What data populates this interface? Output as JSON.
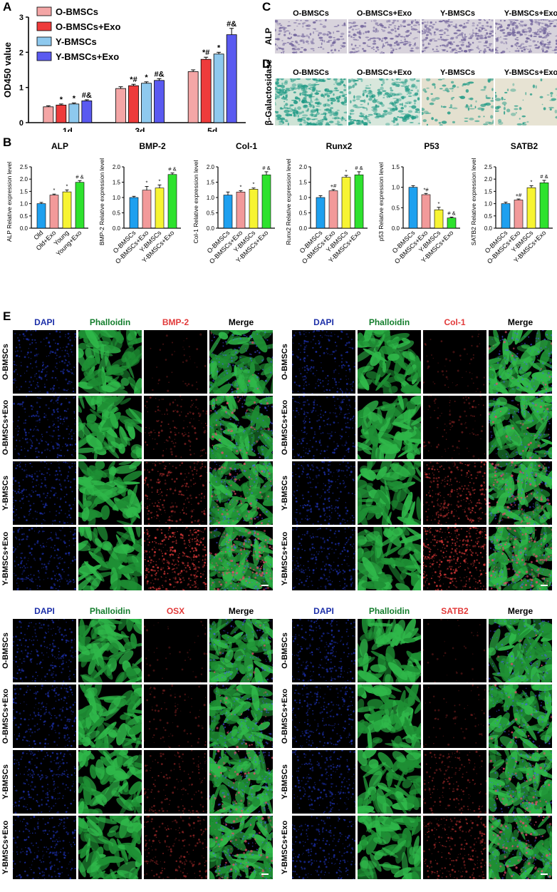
{
  "panels": {
    "A": "A",
    "B": "B",
    "C": "C",
    "D": "D",
    "E": "E"
  },
  "colors": {
    "o": "#f4a6a6",
    "oexo": "#ee3b3b",
    "y": "#8ec9ee",
    "yexo": "#5a5af0",
    "b_old": "#1ea0ef",
    "b_oldexo": "#f29a9a",
    "b_young": "#f7f432",
    "b_youngexo": "#2ee22e",
    "dapi": "#1c2fa8",
    "phal": "#137d2c",
    "red": "#e23a3a"
  },
  "panel_a": {
    "ylabel": "OD450 value",
    "legend": [
      "O-BMSCs",
      "O-BMSCs+Exo",
      "Y-BMSCs",
      "Y-BMSCs+Exo"
    ],
    "chart_data": {
      "type": "bar",
      "categories": [
        "1d",
        "3d",
        "5d"
      ],
      "ylim": [
        0,
        3
      ],
      "yticks": [
        "0",
        "1",
        "2",
        "3"
      ],
      "series": [
        {
          "name": "O-BMSCs",
          "values": [
            0.45,
            0.97,
            1.45
          ],
          "err": [
            0.03,
            0.05,
            0.05
          ]
        },
        {
          "name": "O-BMSCs+Exo",
          "values": [
            0.5,
            1.05,
            1.8
          ],
          "err": [
            0.03,
            0.04,
            0.06
          ]
        },
        {
          "name": "Y-BMSCs",
          "values": [
            0.53,
            1.12,
            1.95
          ],
          "err": [
            0.03,
            0.04,
            0.05
          ]
        },
        {
          "name": "Y-BMSCs+Exo",
          "values": [
            0.62,
            1.2,
            2.5
          ],
          "err": [
            0.03,
            0.05,
            0.18
          ]
        }
      ],
      "annotations": [
        [
          "",
          "*",
          "*",
          "#&"
        ],
        [
          "",
          "*#",
          "*",
          "#&"
        ],
        [
          "",
          "*#",
          "*",
          "#&"
        ]
      ]
    }
  },
  "panel_c": {
    "row_label": "ALP",
    "cols": [
      "O-BMSCs",
      "O-BMSCs+Exo",
      "Y-BMSCs",
      "Y-BMSCs+Exo"
    ]
  },
  "panel_d": {
    "row_label": "β-Galactosidase",
    "cols": [
      "O-BMSCs",
      "O-BMSCs+Exo",
      "Y-BMSCs",
      "Y-BMSCs+Exo"
    ]
  },
  "panel_b": {
    "charts": [
      {
        "title": "ALP",
        "ylabel": "ALP Relative expression level",
        "categories": [
          "Old",
          "Old+Exo",
          "Young",
          "Young+Exo"
        ],
        "ylim": [
          0,
          2.5
        ],
        "yticks": [
          "0.0",
          "0.5",
          "1.0",
          "1.5",
          "2.0",
          "2.5"
        ],
        "values": [
          1.0,
          1.35,
          1.48,
          1.87
        ],
        "err": [
          0.05,
          0.04,
          0.08,
          0.07
        ],
        "ann": [
          "",
          "*",
          "*",
          "# &"
        ]
      },
      {
        "title": "BMP-2",
        "ylabel": "BMP-2 Relative expression level",
        "categories": [
          "O-BMSCs",
          "O-BMSCs+Exo",
          "Y-BMSCs",
          "Y-BMSCs+Exo"
        ],
        "ylim": [
          0,
          2.0
        ],
        "yticks": [
          "0.0",
          "0.5",
          "1.0",
          "1.5",
          "2.0"
        ],
        "values": [
          1.0,
          1.24,
          1.31,
          1.75
        ],
        "err": [
          0.04,
          0.12,
          0.1,
          0.05
        ],
        "ann": [
          "",
          "*",
          "*",
          "# &"
        ]
      },
      {
        "title": "Col-1",
        "ylabel": "Col-1 Relative expression level",
        "categories": [
          "O-BMSCs",
          "O-BMSCs+Exo",
          "Y-BMSCs",
          "Y-BMSCs+Exo"
        ],
        "ylim": [
          0,
          2.0
        ],
        "yticks": [
          "0.0",
          "0.5",
          "1.0",
          "1.5",
          "2.0"
        ],
        "values": [
          1.08,
          1.18,
          1.27,
          1.74
        ],
        "err": [
          0.1,
          0.04,
          0.04,
          0.1
        ],
        "ann": [
          "",
          "*",
          "*",
          "# &"
        ]
      },
      {
        "title": "Runx2",
        "ylabel": "Runx2 Relative expression level",
        "categories": [
          "O-BMSCs",
          "O-BMSCs+Exo",
          "Y-BMSCs",
          "Y-BMSCs+Exo"
        ],
        "ylim": [
          0,
          2.0
        ],
        "yticks": [
          "0.0",
          "0.5",
          "1.0",
          "1.5",
          "2.0"
        ],
        "values": [
          1.0,
          1.22,
          1.66,
          1.74
        ],
        "err": [
          0.06,
          0.04,
          0.06,
          0.1
        ],
        "ann": [
          "",
          "+#",
          "*",
          "# &"
        ]
      },
      {
        "title": "P53",
        "ylabel": "p53 Relative expression level",
        "categories": [
          "O-BMSCs",
          "O-BMSCs+Exo",
          "Y-BMSCs",
          "Y-BMSCs+Exo"
        ],
        "ylim": [
          0,
          1.5
        ],
        "yticks": [
          "0.0",
          "0.5",
          "1.0",
          "1.5"
        ],
        "values": [
          1.0,
          0.82,
          0.45,
          0.25
        ],
        "err": [
          0.04,
          0.03,
          0.06,
          0.02
        ],
        "ann": [
          "",
          "*#",
          "*",
          "# &"
        ]
      },
      {
        "title": "SATB2",
        "ylabel": "SATB2 Relative expression level",
        "categories": [
          "O-BMSCs",
          "O-BMSCs+Exo",
          "Y-BMSCs",
          "Y-BMSCs+Exo"
        ],
        "ylim": [
          0,
          2.5
        ],
        "yticks": [
          "0.0",
          "0.5",
          "1.0",
          "1.5",
          "2.0",
          "2.5"
        ],
        "values": [
          1.0,
          1.15,
          1.65,
          1.85
        ],
        "err": [
          0.06,
          0.04,
          0.08,
          0.1
        ],
        "ann": [
          "",
          "+#",
          "*",
          "# &"
        ]
      }
    ]
  },
  "panel_e": {
    "rows": [
      "O-BMSCs",
      "O-BMSCs+Exo",
      "Y-BMSCs",
      "Y-BMSCs+Exo"
    ],
    "grids": [
      {
        "cols": [
          "DAPI",
          "Phalloidin",
          "BMP-2",
          "Merge"
        ]
      },
      {
        "cols": [
          "DAPI",
          "Phalloidin",
          "Col-1",
          "Merge"
        ]
      },
      {
        "cols": [
          "DAPI",
          "Phalloidin",
          "OSX",
          "Merge"
        ]
      },
      {
        "cols": [
          "DAPI",
          "Phalloidin",
          "SATB2",
          "Merge"
        ]
      }
    ],
    "red_intensity": [
      [
        0.05,
        0.3,
        0.5,
        0.9
      ],
      [
        0.1,
        0.2,
        0.65,
        0.85
      ],
      [
        0.05,
        0.15,
        0.3,
        0.4
      ],
      [
        0.03,
        0.1,
        0.35,
        0.55
      ]
    ]
  }
}
